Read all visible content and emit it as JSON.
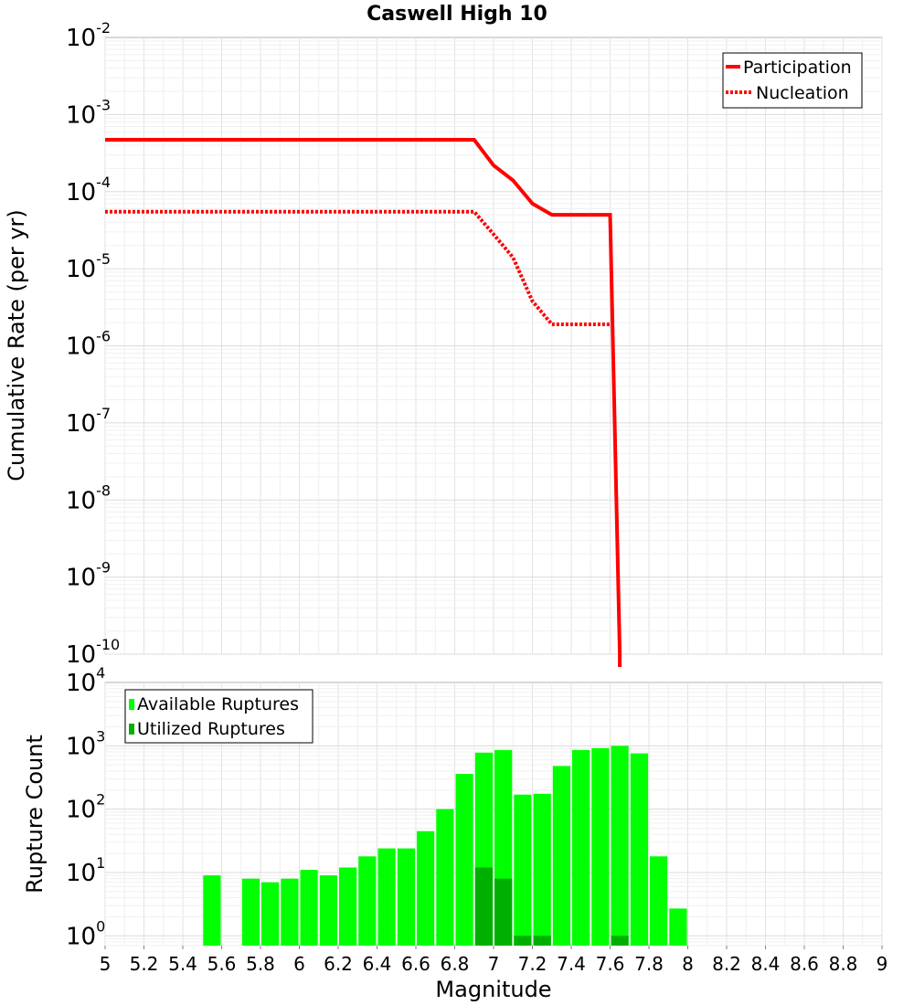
{
  "chart_data": [
    {
      "type": "line",
      "title": "Caswell High 10",
      "xlabel": "",
      "ylabel": "Cumulative Rate (per yr)",
      "xlim": [
        5,
        9
      ],
      "yscale": "log",
      "ylim": [
        1e-10,
        0.01
      ],
      "ytick_labels": [
        {
          "base": "10",
          "exp": "-2"
        },
        {
          "base": "10",
          "exp": "-3"
        },
        {
          "base": "10",
          "exp": "-4"
        },
        {
          "base": "10",
          "exp": "-5"
        },
        {
          "base": "10",
          "exp": "-6"
        },
        {
          "base": "10",
          "exp": "-7"
        },
        {
          "base": "10",
          "exp": "-8"
        },
        {
          "base": "10",
          "exp": "-9"
        },
        {
          "base": "10",
          "exp": "-10"
        }
      ],
      "grid": true,
      "legend_position": "top-right",
      "series": [
        {
          "name": "Participation",
          "color": "#ff0000",
          "style": "solid",
          "x": [
            5.0,
            6.9,
            7.0,
            7.1,
            7.2,
            7.3,
            7.6,
            7.65
          ],
          "y": [
            0.00047,
            0.00047,
            0.00022,
            0.00014,
            7e-05,
            5e-05,
            5e-05,
            1e-10
          ]
        },
        {
          "name": "Nucleation",
          "color": "#ff0000",
          "style": "dotted",
          "x": [
            5.0,
            6.9,
            7.0,
            7.1,
            7.2,
            7.3,
            7.6
          ],
          "y": [
            5.5e-05,
            5.5e-05,
            2.8e-05,
            1.4e-05,
            3.8e-06,
            1.9e-06,
            1.9e-06
          ]
        }
      ]
    },
    {
      "type": "bar",
      "title": "",
      "xlabel": "Magnitude",
      "ylabel": "Rupture Count",
      "xlim": [
        5,
        9
      ],
      "yscale": "log",
      "ylim": [
        0.7,
        10000
      ],
      "xticks": [
        "5",
        "5.2",
        "5.4",
        "5.6",
        "5.8",
        "6",
        "6.2",
        "6.4",
        "6.6",
        "6.8",
        "7",
        "7.2",
        "7.4",
        "7.6",
        "7.8",
        "8",
        "8.2",
        "8.4",
        "8.6",
        "8.8",
        "9"
      ],
      "ytick_labels": [
        {
          "base": "10",
          "exp": "4"
        },
        {
          "base": "10",
          "exp": "3"
        },
        {
          "base": "10",
          "exp": "2"
        },
        {
          "base": "10",
          "exp": "1"
        },
        {
          "base": "10",
          "exp": "0"
        }
      ],
      "bin_width": 0.1,
      "grid": true,
      "legend_position": "top-left",
      "series": [
        {
          "name": "Available Ruptures",
          "color": "#00ff00",
          "bin_centers": [
            5.55,
            5.75,
            5.85,
            5.95,
            6.05,
            6.15,
            6.25,
            6.35,
            6.45,
            6.55,
            6.65,
            6.75,
            6.85,
            6.95,
            7.05,
            7.15,
            7.25,
            7.35,
            7.45,
            7.55,
            7.65,
            7.75,
            7.85,
            7.95
          ],
          "values": [
            9,
            8,
            7,
            8,
            11,
            9,
            12,
            18,
            24,
            24,
            45,
            100,
            360,
            780,
            860,
            170,
            175,
            480,
            860,
            920,
            1000,
            760,
            18,
            2.7
          ]
        },
        {
          "name": "Utilized Ruptures",
          "color": "#00b000",
          "bin_centers": [
            6.95,
            7.05,
            7.15,
            7.25,
            7.65
          ],
          "values": [
            12,
            8,
            1,
            1,
            1
          ]
        }
      ]
    }
  ]
}
